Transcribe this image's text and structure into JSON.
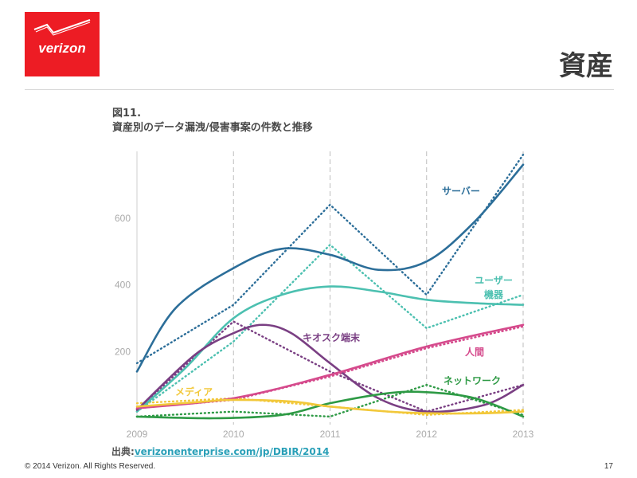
{
  "header": {
    "logo_text": "verizon",
    "title": "資産"
  },
  "figure": {
    "number": "図11.",
    "caption": "資産別のデータ漏洩/侵害事案の件数と推移"
  },
  "colors": {
    "brand_red": "#ed1c24",
    "server": "#2c6e99",
    "user_device": "#4cc0b0",
    "kiosk": "#7a3f83",
    "people": "#d54a8c",
    "network": "#2e9a45",
    "media": "#f2c83a"
  },
  "chart_data": {
    "type": "line",
    "title": "資産別のデータ漏洩/侵害事案の件数と推移",
    "xlabel": "",
    "ylabel": "",
    "x_ticks": [
      "2009",
      "2010",
      "2011",
      "2012",
      "2013"
    ],
    "y_ticks": [
      "200",
      "400",
      "600"
    ],
    "ylim": [
      0,
      800
    ],
    "xlim": [
      2009,
      2013
    ],
    "grid": "vertical dashed lines at 2010, 2011, 2012, 2013",
    "series": [
      {
        "name": "サーバー",
        "color": "#2c6e99",
        "smooth": [
          [
            2009,
            140
          ],
          [
            2009.4,
            330
          ],
          [
            2010,
            450
          ],
          [
            2010.5,
            508
          ],
          [
            2011,
            490
          ],
          [
            2011.5,
            445
          ],
          [
            2012,
            470
          ],
          [
            2012.5,
            590
          ],
          [
            2013,
            760
          ]
        ],
        "raw": [
          [
            2009,
            165
          ],
          [
            2010,
            340
          ],
          [
            2011,
            640
          ],
          [
            2012,
            370
          ],
          [
            2013,
            790
          ]
        ]
      },
      {
        "name": "ユーザー機器",
        "color": "#4cc0b0",
        "smooth": [
          [
            2009,
            20
          ],
          [
            2009.5,
            150
          ],
          [
            2010,
            300
          ],
          [
            2010.5,
            370
          ],
          [
            2011,
            395
          ],
          [
            2011.5,
            380
          ],
          [
            2012,
            355
          ],
          [
            2012.5,
            345
          ],
          [
            2013,
            340
          ]
        ],
        "raw": [
          [
            2009,
            20
          ],
          [
            2010,
            230
          ],
          [
            2011,
            520
          ],
          [
            2012,
            270
          ],
          [
            2013,
            370
          ]
        ]
      },
      {
        "name": "キオスク端末",
        "color": "#7a3f83",
        "smooth": [
          [
            2009,
            25
          ],
          [
            2009.6,
            190
          ],
          [
            2010,
            255
          ],
          [
            2010.3,
            280
          ],
          [
            2010.6,
            255
          ],
          [
            2011,
            165
          ],
          [
            2011.5,
            60
          ],
          [
            2012,
            20
          ],
          [
            2012.6,
            40
          ],
          [
            2013,
            100
          ]
        ],
        "raw": [
          [
            2009,
            25
          ],
          [
            2010,
            290
          ],
          [
            2011,
            140
          ],
          [
            2012,
            20
          ],
          [
            2013,
            100
          ]
        ]
      },
      {
        "name": "人間",
        "color": "#d54a8c",
        "smooth": [
          [
            2009,
            30
          ],
          [
            2010,
            60
          ],
          [
            2011,
            130
          ],
          [
            2012,
            215
          ],
          [
            2013,
            280
          ]
        ],
        "raw": [
          [
            2009,
            30
          ],
          [
            2010,
            55
          ],
          [
            2011,
            125
          ],
          [
            2012,
            210
          ],
          [
            2013,
            275
          ]
        ]
      },
      {
        "name": "ネットワーク",
        "color": "#2e9a45",
        "smooth": [
          [
            2009,
            5
          ],
          [
            2009.8,
            0
          ],
          [
            2010.5,
            10
          ],
          [
            2011,
            45
          ],
          [
            2011.6,
            75
          ],
          [
            2012,
            78
          ],
          [
            2012.5,
            60
          ],
          [
            2013,
            5
          ]
        ],
        "raw": [
          [
            2009,
            5
          ],
          [
            2010,
            20
          ],
          [
            2011,
            5
          ],
          [
            2012,
            100
          ],
          [
            2013,
            10
          ]
        ]
      },
      {
        "name": "メディア",
        "color": "#f2c83a",
        "smooth": [
          [
            2009,
            35
          ],
          [
            2009.7,
            50
          ],
          [
            2010,
            55
          ],
          [
            2010.6,
            50
          ],
          [
            2011,
            35
          ],
          [
            2011.6,
            20
          ],
          [
            2012,
            15
          ],
          [
            2012.6,
            15
          ],
          [
            2013,
            20
          ]
        ],
        "raw": [
          [
            2009,
            45
          ],
          [
            2010,
            60
          ],
          [
            2011,
            35
          ],
          [
            2012,
            10
          ],
          [
            2013,
            25
          ]
        ]
      }
    ]
  },
  "source": {
    "label": "出典:",
    "link": "verizonenterprise.com/jp/DBIR/2014"
  },
  "footer": {
    "copyright": "© 2014 Verizon. All Rights Reserved.",
    "page_number": "17"
  }
}
